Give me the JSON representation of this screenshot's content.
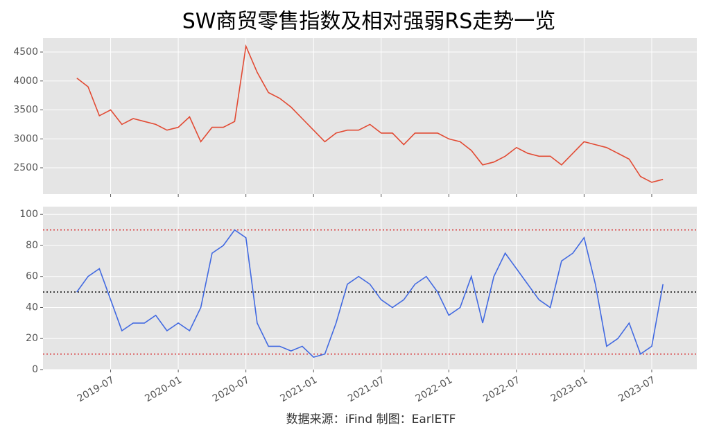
{
  "title": "SW商贸零售指数及相对强弱RS走势一览",
  "footer": "数据来源：iFind 制图：EarlETF",
  "chart_data": [
    {
      "type": "line",
      "x": [
        "2019-04",
        "2019-05",
        "2019-06",
        "2019-07",
        "2019-08",
        "2019-09",
        "2019-10",
        "2019-11",
        "2019-12",
        "2020-01",
        "2020-02",
        "2020-03",
        "2020-04",
        "2020-05",
        "2020-06",
        "2020-07",
        "2020-08",
        "2020-09",
        "2020-10",
        "2020-11",
        "2020-12",
        "2021-01",
        "2021-02",
        "2021-03",
        "2021-04",
        "2021-05",
        "2021-06",
        "2021-07",
        "2021-08",
        "2021-09",
        "2021-10",
        "2021-11",
        "2021-12",
        "2022-01",
        "2022-02",
        "2022-03",
        "2022-04",
        "2022-05",
        "2022-06",
        "2022-07",
        "2022-08",
        "2022-09",
        "2022-10",
        "2022-11",
        "2022-12",
        "2023-01",
        "2023-02",
        "2023-03",
        "2023-04",
        "2023-05",
        "2023-06",
        "2023-07",
        "2023-08"
      ],
      "series": [
        {
          "color": "#e24a33",
          "values": [
            4050,
            3900,
            3400,
            3500,
            3250,
            3350,
            3300,
            3250,
            3150,
            3200,
            3380,
            2950,
            3200,
            3200,
            3300,
            4600,
            4150,
            3800,
            3700,
            3550,
            3350,
            3150,
            2950,
            3100,
            3150,
            3150,
            3250,
            3100,
            3100,
            2900,
            3100,
            3100,
            3100,
            3000,
            2950,
            2800,
            2550,
            2600,
            2700,
            2850,
            2750,
            2700,
            2700,
            2550,
            2750,
            2950,
            2900,
            2850,
            2750,
            2650,
            2350,
            2250,
            2300
          ]
        }
      ],
      "xlim": [
        "2019-01",
        "2023-11"
      ],
      "xticks": [
        "2019-07",
        "2020-01",
        "2020-07",
        "2021-01",
        "2021-07",
        "2022-01",
        "2022-07",
        "2023-01",
        "2023-07"
      ],
      "show_xtick_labels": false,
      "ylim": [
        2045,
        4740
      ],
      "yticks": [
        2500,
        3000,
        3500,
        4000,
        4500
      ],
      "grid": true
    },
    {
      "type": "line",
      "x": [
        "2019-04",
        "2019-05",
        "2019-06",
        "2019-07",
        "2019-08",
        "2019-09",
        "2019-10",
        "2019-11",
        "2019-12",
        "2020-01",
        "2020-02",
        "2020-03",
        "2020-04",
        "2020-05",
        "2020-06",
        "2020-07",
        "2020-08",
        "2020-09",
        "2020-10",
        "2020-11",
        "2020-12",
        "2021-01",
        "2021-02",
        "2021-03",
        "2021-04",
        "2021-05",
        "2021-06",
        "2021-07",
        "2021-08",
        "2021-09",
        "2021-10",
        "2021-11",
        "2021-12",
        "2022-01",
        "2022-02",
        "2022-03",
        "2022-04",
        "2022-05",
        "2022-06",
        "2022-07",
        "2022-08",
        "2022-09",
        "2022-10",
        "2022-11",
        "2022-12",
        "2023-01",
        "2023-02",
        "2023-03",
        "2023-04",
        "2023-05",
        "2023-06",
        "2023-07",
        "2023-08"
      ],
      "series": [
        {
          "color": "#4169e1",
          "values": [
            50,
            60,
            65,
            45,
            25,
            30,
            30,
            35,
            25,
            30,
            25,
            40,
            75,
            80,
            90,
            85,
            30,
            15,
            15,
            12,
            15,
            8,
            10,
            30,
            55,
            60,
            55,
            45,
            40,
            45,
            55,
            60,
            50,
            35,
            40,
            60,
            30,
            60,
            75,
            65,
            55,
            45,
            40,
            70,
            75,
            85,
            55,
            15,
            20,
            30,
            10,
            15,
            55
          ]
        }
      ],
      "hlines": [
        {
          "value": 90,
          "color": "#d62728"
        },
        {
          "value": 50,
          "color": "#000000"
        },
        {
          "value": 10,
          "color": "#d62728"
        }
      ],
      "xlim": [
        "2019-01",
        "2023-11"
      ],
      "xticks": [
        "2019-07",
        "2020-01",
        "2020-07",
        "2021-01",
        "2021-07",
        "2022-01",
        "2022-07",
        "2023-01",
        "2023-07"
      ],
      "show_xtick_labels": true,
      "ylim": [
        0,
        105
      ],
      "yticks": [
        0,
        20,
        40,
        60,
        80,
        100
      ],
      "grid": true
    }
  ]
}
